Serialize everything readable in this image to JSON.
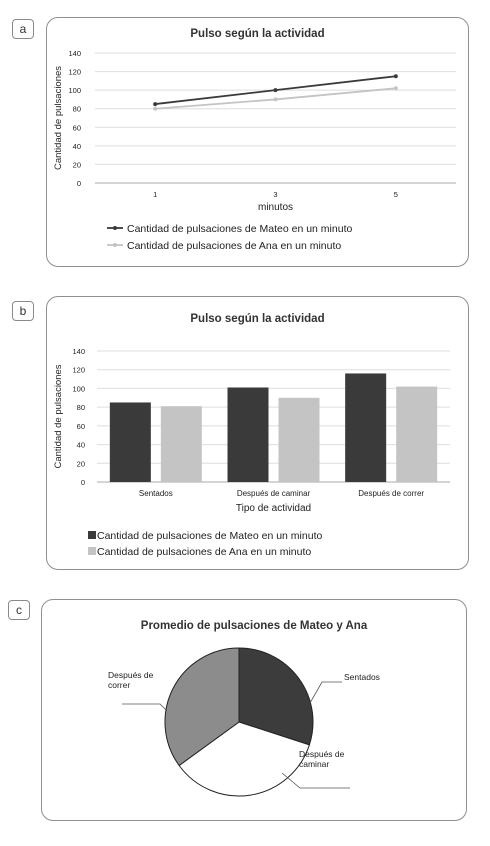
{
  "panels": {
    "a": "a",
    "b": "b",
    "c": "c"
  },
  "chart_data": [
    {
      "type": "line",
      "title": "Pulso según la actividad",
      "xlabel": "minutos",
      "ylabel": "Cantidad de pulsaciones",
      "x": [
        "1",
        "3",
        "5"
      ],
      "ylim": [
        0,
        140
      ],
      "yticks": [
        0,
        20,
        40,
        60,
        80,
        100,
        120,
        140
      ],
      "grid": true,
      "legend_position": "bottom",
      "series": [
        {
          "name": "Cantidad de pulsaciones de Mateo en un minuto",
          "values": [
            85,
            100,
            115
          ],
          "color": "#3a3a3a"
        },
        {
          "name": "Cantidad de pulsaciones de Ana en un minuto",
          "values": [
            80,
            90,
            102
          ],
          "color": "#c4c4c4"
        }
      ]
    },
    {
      "type": "bar",
      "title": "Pulso según la actividad",
      "xlabel": "Tipo de actividad",
      "ylabel": "Cantidad de pulsaciones",
      "categories": [
        "Sentados",
        "Después de caminar",
        "Después de correr"
      ],
      "ylim": [
        0,
        140
      ],
      "yticks": [
        0,
        20,
        40,
        60,
        80,
        100,
        120,
        140
      ],
      "grid": true,
      "legend_position": "bottom",
      "series": [
        {
          "name": "Cantidad de pulsaciones de Mateo en un minuto",
          "values": [
            85,
            101,
            116
          ],
          "color": "#3a3a3a"
        },
        {
          "name": "Cantidad de pulsaciones de Ana en un minuto",
          "values": [
            81,
            90,
            102
          ],
          "color": "#c4c4c4"
        }
      ]
    },
    {
      "type": "pie",
      "title": "Promedio de pulsaciones de Mateo y Ana",
      "slices": [
        {
          "label": "Sentados",
          "value": 30,
          "color": "#3c3c3c"
        },
        {
          "label": "Después de caminar",
          "label_lines": [
            "Después de",
            "caminar"
          ],
          "value": 35,
          "color": "#ffffff"
        },
        {
          "label": "Después de correr",
          "label_lines": [
            "Después de",
            "correr"
          ],
          "value": 35,
          "color": "#8c8c8c"
        }
      ]
    }
  ]
}
